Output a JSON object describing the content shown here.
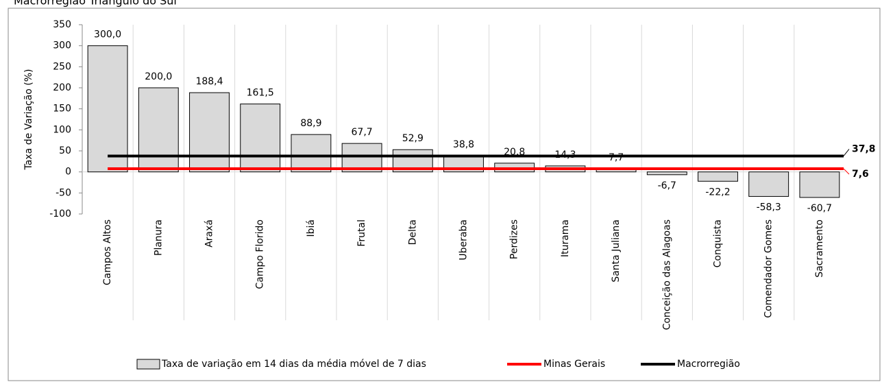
{
  "chart_data": {
    "type": "bar",
    "title": "Macrorregião Triângulo do Sul",
    "y_label": "Taxa de Variação (%)",
    "categories": [
      "Campos Altos",
      "Planura",
      "Araxá",
      "Campo Florido",
      "Ibiá",
      "Frutal",
      "Delta",
      "Uberaba",
      "Perdizes",
      "Iturama",
      "Santa Juliana",
      "Conceição das Alagoas",
      "Conquista",
      "Comendador Gomes",
      "Sacramento"
    ],
    "series": [
      {
        "name": "Taxa de variação em 14 dias da média móvel de 7 dias",
        "type": "bar",
        "color": "#d9d9d9",
        "values": [
          300.0,
          200.0,
          188.4,
          161.5,
          88.9,
          67.7,
          52.9,
          38.8,
          20.8,
          14.3,
          7.7,
          -6.7,
          -22.2,
          -58.3,
          -60.7
        ],
        "value_labels": [
          "300,0",
          "200,0",
          "188,4",
          "161,5",
          "88,9",
          "67,7",
          "52,9",
          "38,8",
          "20,8",
          "14,3",
          "7,7",
          "-6,7",
          "-22,2",
          "-58,3",
          "-60,7"
        ]
      },
      {
        "name": "Minas Gerais",
        "type": "hline",
        "color": "#ff0000",
        "value": 7.6,
        "value_label": "7,6"
      },
      {
        "name": "Macrorregião",
        "type": "hline",
        "color": "#000000",
        "value": 37.8,
        "value_label": "37,8"
      }
    ],
    "ylim": [
      -100,
      350
    ],
    "yticks": [
      -100,
      -50,
      0,
      50,
      100,
      150,
      200,
      250,
      300,
      350
    ],
    "grid": true
  }
}
